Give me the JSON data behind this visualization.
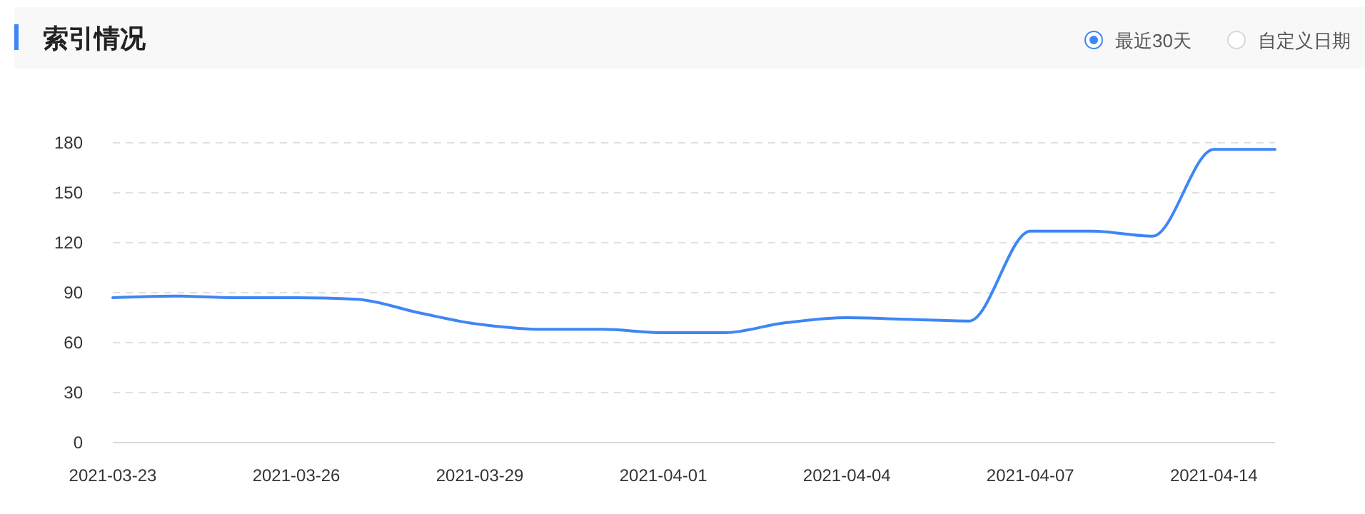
{
  "chart_data": {
    "type": "line",
    "title": "索引情况",
    "annotations": [
      "最近30天",
      "自定义日期"
    ],
    "categories": [
      "2021-03-23",
      null,
      null,
      "2021-03-26",
      null,
      null,
      "2021-03-29",
      null,
      null,
      "2021-04-01",
      null,
      null,
      "2021-04-04",
      null,
      null,
      "2021-04-07",
      null,
      null,
      "2021-04-14",
      null
    ],
    "values": [
      87,
      88,
      87,
      87,
      86,
      78,
      71,
      68,
      68,
      66,
      66,
      72,
      75,
      74,
      73,
      127,
      127,
      124,
      176,
      176
    ],
    "color": "#3f86f5",
    "ylim": [
      0,
      180
    ],
    "yticks": [
      0,
      30,
      60,
      90,
      120,
      150,
      180
    ],
    "grid": "y"
  }
}
